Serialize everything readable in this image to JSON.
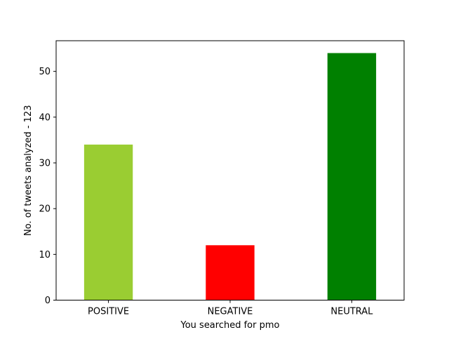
{
  "chart_data": {
    "type": "bar",
    "categories": [
      "POSITIVE",
      "NEGATIVE",
      "NEUTRAL"
    ],
    "values": [
      34,
      12,
      54
    ],
    "colors": [
      "#9acd32",
      "#ff0000",
      "#008000"
    ],
    "title": "",
    "xlabel": "You searched for pmo",
    "ylabel": "No. of tweets analyzed - 123",
    "ylim": [
      0,
      56.7
    ],
    "yticks": [
      0,
      10,
      20,
      30,
      40,
      50
    ],
    "grid": false,
    "legend": false
  }
}
